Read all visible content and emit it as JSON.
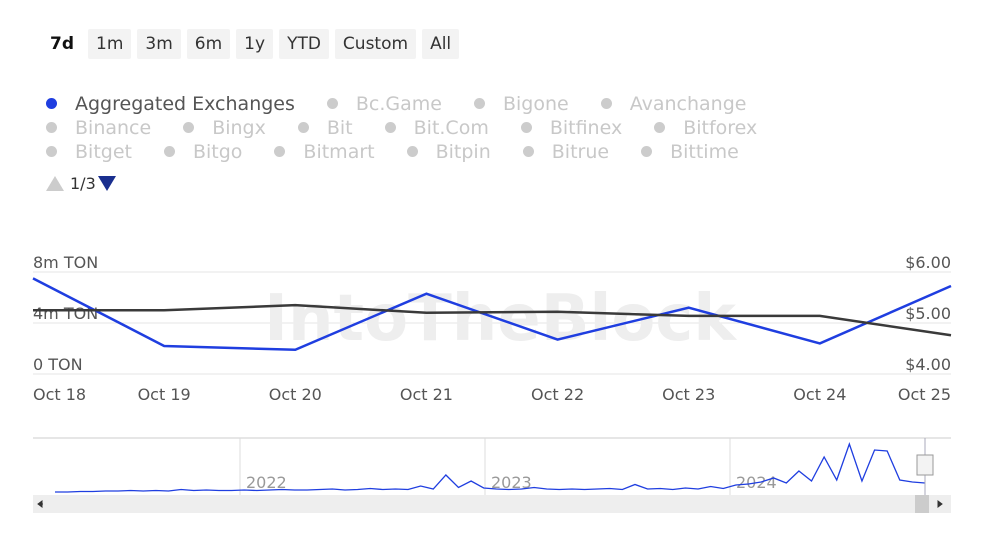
{
  "ranges": [
    "7d",
    "1m",
    "3m",
    "6m",
    "1y",
    "YTD",
    "Custom",
    "All"
  ],
  "selected_range": "7d",
  "legend_items": [
    "Aggregated Exchanges",
    "Bc.Game",
    "Bigone",
    "Avanchange",
    "Binance",
    "Bingx",
    "Bit",
    "Bit.Com",
    "Bitfinex",
    "Bitforex",
    "Bitget",
    "Bitgo",
    "Bitmart",
    "Bitpin",
    "Bitrue",
    "Bittime"
  ],
  "legend_page": "1/3",
  "chart_data": {
    "type": "line",
    "watermark": "IntoTheBlock",
    "categories": [
      "Oct 18",
      "Oct 19",
      "Oct 20",
      "Oct 21",
      "Oct 22",
      "Oct 23",
      "Oct 24",
      "Oct 25"
    ],
    "series": [
      {
        "name": "Aggregated Exchanges",
        "color": "#1f3ee0",
        "values": [
          7500000,
          2200000,
          1900000,
          6300000,
          2700000,
          5200000,
          2400000,
          6900000
        ]
      },
      {
        "color": "#3a3a3a",
        "axis": "y2",
        "values": [
          5.25,
          5.25,
          5.35,
          5.2,
          5.22,
          5.14,
          5.14,
          4.76
        ]
      }
    ],
    "ylim": [
      0,
      8000000
    ],
    "yticks": [
      {
        "value": 0,
        "label": "0 TON"
      },
      {
        "value": 4000000,
        "label": "4m TON"
      },
      {
        "value": 8000000,
        "label": "8m TON"
      }
    ],
    "y2lim": [
      4,
      6
    ],
    "y2ticks": [
      {
        "value": 4,
        "label": "$4.00"
      },
      {
        "value": 5,
        "label": "$5.00"
      },
      {
        "value": 6,
        "label": "$6.00"
      }
    ],
    "grid": true,
    "navigator": {
      "color": "#1f3ee0",
      "labels": [
        "2022",
        "2023",
        "2024"
      ],
      "values": [
        0,
        0,
        0.1,
        0.1,
        0.2,
        0.2,
        0.3,
        0.2,
        0.3,
        0.2,
        0.5,
        0.3,
        0.4,
        0.3,
        0.3,
        0.4,
        0.3,
        0.4,
        0.5,
        0.4,
        0.4,
        0.5,
        0.6,
        0.4,
        0.5,
        0.7,
        0.5,
        0.6,
        0.5,
        1.2,
        0.6,
        3.4,
        0.9,
        2.2,
        0.8,
        0.6,
        0.5,
        0.6,
        0.9,
        0.6,
        0.5,
        0.6,
        0.5,
        0.6,
        0.7,
        0.5,
        1.5,
        0.6,
        0.7,
        0.5,
        0.8,
        0.6,
        1.1,
        0.7,
        1.4,
        1.6,
        2.0,
        2.8,
        1.8,
        4.2,
        2.2,
        7.0,
        2.4,
        9.6,
        2.2,
        8.4,
        8.2,
        2.4,
        2.0,
        1.8
      ]
    }
  }
}
